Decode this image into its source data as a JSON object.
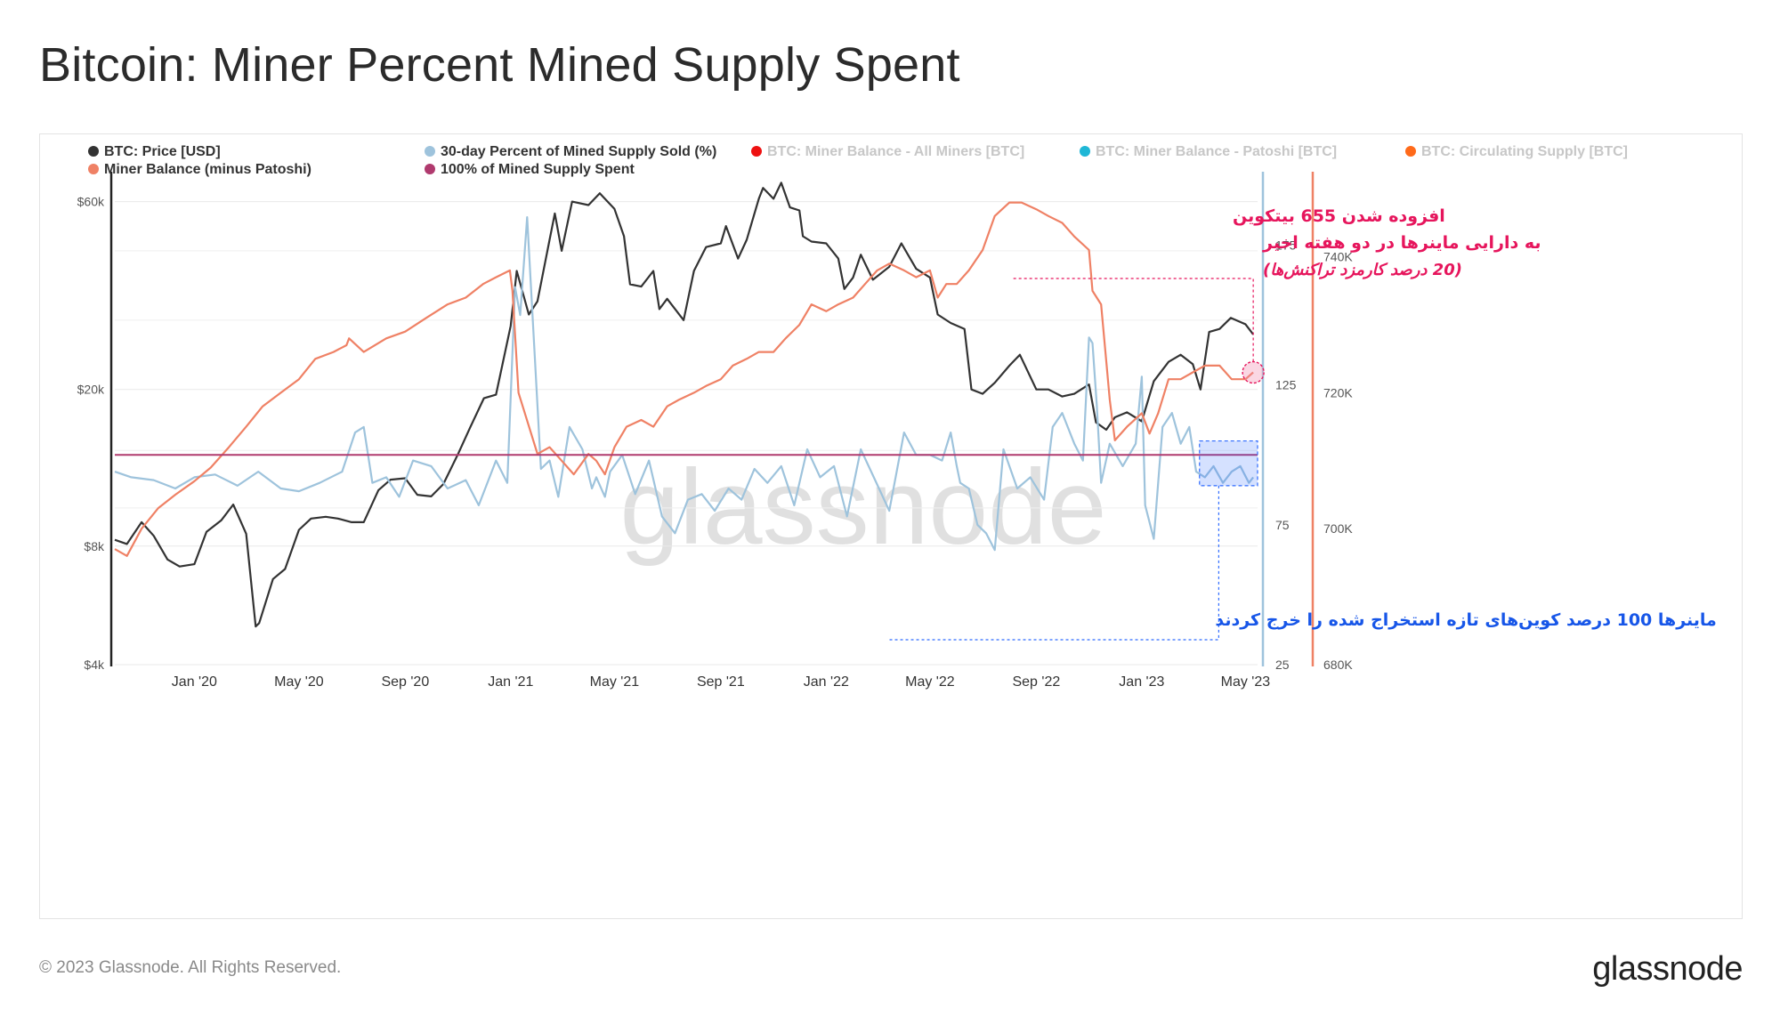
{
  "page": {
    "title": "Bitcoin: Miner Percent Mined Supply Spent",
    "copyright": "© 2023 Glassnode. All Rights Reserved.",
    "logo": "glassnode",
    "watermark": "glassnode"
  },
  "chart_data": {
    "type": "line",
    "x_range": [
      "2019-10-01",
      "2023-05-15"
    ],
    "x_ticks": [
      "Jan '20",
      "May '20",
      "Sep '20",
      "Jan '21",
      "May '21",
      "Sep '21",
      "Jan '22",
      "May '22",
      "Sep '22",
      "Jan '23",
      "May '23"
    ],
    "x_tick_dates": [
      "2020-01-01",
      "2020-05-01",
      "2020-09-01",
      "2021-01-01",
      "2021-05-01",
      "2021-09-01",
      "2022-01-01",
      "2022-05-01",
      "2022-09-01",
      "2023-01-01",
      "2023-05-01"
    ],
    "axes": {
      "price": {
        "scale": "log",
        "range": [
          4000,
          70000
        ],
        "ticks": [
          4000,
          8000,
          20000,
          60000
        ],
        "tick_labels": [
          "$4k",
          "$8k",
          "$20k",
          "$60k"
        ],
        "color": "#333333"
      },
      "percent": {
        "scale": "linear",
        "range": [
          25,
          200
        ],
        "ticks": [
          25,
          75,
          125,
          175
        ],
        "tick_labels": [
          "25",
          "75",
          "125",
          "175"
        ],
        "color": "#9ec3dc"
      },
      "balance": {
        "scale": "linear",
        "range": [
          680000,
          752000
        ],
        "ticks": [
          680000,
          700000,
          720000,
          740000
        ],
        "tick_labels": [
          "680K",
          "700K",
          "720K",
          "740K"
        ],
        "color": "#ef8165"
      }
    },
    "legend": [
      {
        "name": "BTC: Price [USD]",
        "color": "#333333",
        "active": true
      },
      {
        "name": "30-day Percent of Mined Supply Sold (%)",
        "color": "#9ec3dc",
        "active": true
      },
      {
        "name": "BTC: Miner Balance - All Miners [BTC]",
        "color": "#ee1111",
        "active": false
      },
      {
        "name": "BTC: Miner Balance - Patoshi [BTC]",
        "color": "#1fb7d6",
        "active": false
      },
      {
        "name": "BTC: Circulating Supply [BTC]",
        "color": "#ff6a1a",
        "active": false
      },
      {
        "name": "Miner Balance (minus Patoshi)",
        "color": "#ef8165",
        "active": true
      },
      {
        "name": "100% of Mined Supply Spent",
        "color": "#b03a6e",
        "active": true
      }
    ],
    "series": [
      {
        "name": "BTC: Price [USD]",
        "axis": "price",
        "color": "#333333",
        "x": [
          "2019-10-01",
          "2019-10-15",
          "2019-11-01",
          "2019-11-15",
          "2019-12-01",
          "2019-12-15",
          "2020-01-01",
          "2020-01-15",
          "2020-02-01",
          "2020-02-15",
          "2020-03-01",
          "2020-03-12",
          "2020-03-16",
          "2020-04-01",
          "2020-04-15",
          "2020-05-01",
          "2020-05-15",
          "2020-06-01",
          "2020-06-15",
          "2020-07-01",
          "2020-07-15",
          "2020-08-01",
          "2020-08-15",
          "2020-09-01",
          "2020-09-15",
          "2020-10-01",
          "2020-10-15",
          "2020-11-01",
          "2020-11-15",
          "2020-12-01",
          "2020-12-15",
          "2021-01-01",
          "2021-01-08",
          "2021-01-22",
          "2021-02-01",
          "2021-02-15",
          "2021-02-21",
          "2021-03-01",
          "2021-03-13",
          "2021-04-01",
          "2021-04-14",
          "2021-05-01",
          "2021-05-12",
          "2021-05-19",
          "2021-06-01",
          "2021-06-15",
          "2021-06-22",
          "2021-07-01",
          "2021-07-20",
          "2021-08-01",
          "2021-08-15",
          "2021-09-01",
          "2021-09-07",
          "2021-09-21",
          "2021-10-01",
          "2021-10-15",
          "2021-10-20",
          "2021-11-01",
          "2021-11-10",
          "2021-11-20",
          "2021-12-01",
          "2021-12-05",
          "2021-12-15",
          "2022-01-01",
          "2022-01-15",
          "2022-01-22",
          "2022-02-01",
          "2022-02-10",
          "2022-02-24",
          "2022-03-15",
          "2022-03-29",
          "2022-04-15",
          "2022-05-01",
          "2022-05-10",
          "2022-05-25",
          "2022-06-10",
          "2022-06-18",
          "2022-07-01",
          "2022-07-15",
          "2022-08-01",
          "2022-08-13",
          "2022-09-01",
          "2022-09-15",
          "2022-10-01",
          "2022-10-15",
          "2022-11-01",
          "2022-11-09",
          "2022-11-21",
          "2022-12-01",
          "2022-12-15",
          "2023-01-01",
          "2023-01-15",
          "2023-02-01",
          "2023-02-15",
          "2023-03-01",
          "2023-03-10",
          "2023-03-20",
          "2023-04-01",
          "2023-04-14",
          "2023-05-01",
          "2023-05-10"
        ],
        "values": [
          8300,
          8100,
          9200,
          8500,
          7400,
          7100,
          7200,
          8700,
          9300,
          10200,
          8600,
          5000,
          5100,
          6600,
          7000,
          8800,
          9400,
          9500,
          9400,
          9200,
          9200,
          11100,
          11800,
          11900,
          10800,
          10700,
          11500,
          13700,
          16000,
          19000,
          19400,
          29000,
          40000,
          31000,
          33500,
          48000,
          56000,
          45000,
          60000,
          58800,
          63000,
          57500,
          49000,
          37000,
          36500,
          40000,
          32000,
          34000,
          30000,
          40000,
          46000,
          47000,
          52000,
          43000,
          48000,
          61000,
          65000,
          61000,
          67000,
          58000,
          57000,
          49000,
          47500,
          47000,
          43000,
          36000,
          38500,
          44000,
          38000,
          41000,
          47000,
          40500,
          38500,
          31000,
          29500,
          28500,
          20000,
          19500,
          20800,
          23000,
          24500,
          20000,
          20000,
          19200,
          19500,
          20600,
          16500,
          15800,
          17000,
          17500,
          16600,
          21000,
          23500,
          24500,
          23200,
          20000,
          28000,
          28500,
          30400,
          29300,
          27600
        ]
      },
      {
        "name": "30-day Percent of Mined Supply Sold (%)",
        "axis": "percent",
        "color": "#9ec3dc",
        "x": [
          "2019-10-01",
          "2019-10-20",
          "2019-11-15",
          "2019-12-10",
          "2020-01-01",
          "2020-01-25",
          "2020-02-20",
          "2020-03-15",
          "2020-04-10",
          "2020-05-01",
          "2020-05-25",
          "2020-06-20",
          "2020-07-05",
          "2020-07-15",
          "2020-07-25",
          "2020-08-10",
          "2020-08-25",
          "2020-09-10",
          "2020-10-01",
          "2020-10-20",
          "2020-11-10",
          "2020-11-25",
          "2020-12-15",
          "2020-12-28",
          "2021-01-06",
          "2021-01-12",
          "2021-01-20",
          "2021-02-05",
          "2021-02-15",
          "2021-02-25",
          "2021-03-10",
          "2021-03-25",
          "2021-04-05",
          "2021-04-10",
          "2021-04-20",
          "2021-04-26",
          "2021-05-10",
          "2021-05-25",
          "2021-06-10",
          "2021-06-25",
          "2021-07-10",
          "2021-07-25",
          "2021-08-10",
          "2021-08-25",
          "2021-09-10",
          "2021-09-25",
          "2021-10-10",
          "2021-10-25",
          "2021-11-10",
          "2021-11-25",
          "2021-12-10",
          "2021-12-25",
          "2022-01-10",
          "2022-01-25",
          "2022-02-10",
          "2022-02-25",
          "2022-03-15",
          "2022-04-01",
          "2022-04-15",
          "2022-05-01",
          "2022-05-15",
          "2022-05-25",
          "2022-06-01",
          "2022-06-05",
          "2022-06-15",
          "2022-06-25",
          "2022-07-05",
          "2022-07-15",
          "2022-07-25",
          "2022-08-10",
          "2022-08-25",
          "2022-09-10",
          "2022-09-20",
          "2022-10-01",
          "2022-10-15",
          "2022-10-25",
          "2022-11-01",
          "2022-11-05",
          "2022-11-10",
          "2022-11-15",
          "2022-11-25",
          "2022-12-10",
          "2022-12-25",
          "2023-01-01",
          "2023-01-05",
          "2023-01-15",
          "2023-01-25",
          "2023-02-05",
          "2023-02-15",
          "2023-02-25",
          "2023-03-05",
          "2023-03-15",
          "2023-03-25",
          "2023-04-05",
          "2023-04-15",
          "2023-04-25",
          "2023-05-05",
          "2023-05-10"
        ],
        "values": [
          94,
          92,
          91,
          88,
          92,
          93,
          89,
          94,
          88,
          87,
          90,
          94,
          108,
          110,
          90,
          92,
          85,
          98,
          96,
          88,
          91,
          82,
          98,
          90,
          160,
          150,
          185,
          95,
          98,
          85,
          110,
          102,
          88,
          92,
          85,
          94,
          100,
          86,
          98,
          78,
          72,
          84,
          86,
          80,
          88,
          84,
          95,
          90,
          96,
          82,
          102,
          92,
          96,
          78,
          102,
          92,
          80,
          108,
          100,
          100,
          98,
          108,
          96,
          90,
          88,
          75,
          72,
          66,
          102,
          88,
          92,
          84,
          110,
          115,
          104,
          98,
          142,
          140,
          118,
          90,
          104,
          96,
          104,
          128,
          82,
          70,
          110,
          115,
          104,
          110,
          94,
          92,
          96,
          90,
          94,
          96,
          90,
          92
        ]
      },
      {
        "name": "Miner Balance (minus Patoshi)",
        "axis": "balance",
        "color": "#ef8165",
        "x": [
          "2019-10-01",
          "2019-10-15",
          "2019-11-01",
          "2019-11-20",
          "2019-12-10",
          "2020-01-01",
          "2020-01-20",
          "2020-02-10",
          "2020-03-01",
          "2020-03-20",
          "2020-04-10",
          "2020-05-01",
          "2020-05-20",
          "2020-06-10",
          "2020-06-25",
          "2020-06-28",
          "2020-07-15",
          "2020-08-10",
          "2020-09-01",
          "2020-09-25",
          "2020-10-20",
          "2020-11-10",
          "2020-11-30",
          "2020-12-15",
          "2020-12-31",
          "2021-01-03",
          "2021-01-10",
          "2021-02-01",
          "2021-02-15",
          "2021-03-01",
          "2021-03-15",
          "2021-04-01",
          "2021-04-10",
          "2021-04-20",
          "2021-05-01",
          "2021-05-15",
          "2021-06-01",
          "2021-06-15",
          "2021-07-01",
          "2021-07-15",
          "2021-08-01",
          "2021-08-15",
          "2021-09-01",
          "2021-09-15",
          "2021-10-01",
          "2021-10-15",
          "2021-11-01",
          "2021-11-15",
          "2021-12-01",
          "2021-12-15",
          "2022-01-01",
          "2022-01-15",
          "2022-02-01",
          "2022-02-15",
          "2022-03-01",
          "2022-03-15",
          "2022-04-01",
          "2022-04-15",
          "2022-05-01",
          "2022-05-10",
          "2022-05-20",
          "2022-06-01",
          "2022-06-15",
          "2022-07-01",
          "2022-07-15",
          "2022-08-01",
          "2022-08-15",
          "2022-09-01",
          "2022-09-15",
          "2022-10-01",
          "2022-10-15",
          "2022-11-01",
          "2022-11-05",
          "2022-11-15",
          "2022-11-25",
          "2022-12-01",
          "2022-12-15",
          "2023-01-01",
          "2023-01-10",
          "2023-01-20",
          "2023-02-01",
          "2023-02-15",
          "2023-03-01",
          "2023-03-15",
          "2023-04-01",
          "2023-04-15",
          "2023-05-01",
          "2023-05-10"
        ],
        "values": [
          697,
          696,
          700,
          703,
          705,
          707,
          709,
          712,
          715,
          718,
          720,
          722,
          725,
          726,
          727,
          728,
          726,
          728,
          729,
          731,
          733,
          734,
          736,
          737,
          738,
          735,
          720,
          711,
          712,
          710,
          708,
          711,
          710,
          708,
          712,
          715,
          716,
          715,
          718,
          719,
          720,
          721,
          722,
          724,
          725,
          726,
          726,
          728,
          730,
          733,
          732,
          733,
          734,
          736,
          738,
          739,
          738,
          737,
          738,
          734,
          736,
          736,
          738,
          741,
          746,
          748,
          748,
          747,
          746,
          745,
          743,
          741,
          735,
          733,
          719,
          713,
          715,
          717,
          714,
          717,
          722,
          722,
          723,
          724,
          724,
          722,
          722,
          723
        ]
      },
      {
        "name": "100% of Mined Supply Spent",
        "axis": "percent",
        "color": "#b03a6e",
        "x": [
          "2019-10-01",
          "2023-05-15"
        ],
        "values": [
          100,
          100
        ]
      }
    ],
    "annotations": [
      {
        "text_lines": [
          "افزوده شدن 655 بیتکوین",
          "به دارایی ماینرها در دو هفته اخیر",
          "(20 درصد کارمزد تراکنش‌ها)"
        ],
        "color": "#e6155c"
      },
      {
        "text": "ماینرها 100 درصد کوین‌های تازه استخراج شده را خرج کردند",
        "color": "#1756e8"
      }
    ],
    "grid": true,
    "legend_position": "top"
  }
}
